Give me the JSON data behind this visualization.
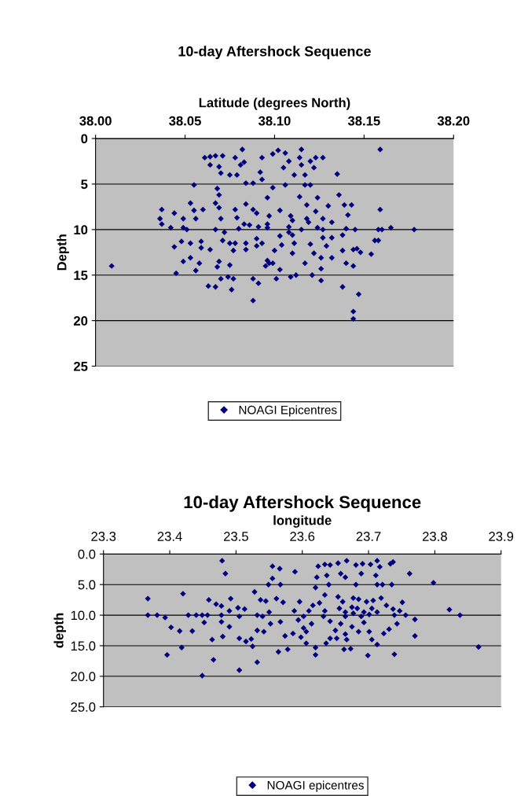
{
  "chart_data": [
    {
      "type": "scatter",
      "title": "10-day Aftershock Sequence",
      "xlabel": "Latitude (degrees North)",
      "ylabel": "Depth",
      "xlim": [
        38.0,
        38.2
      ],
      "xticks": [
        {
          "value": 38.0,
          "label": "38.00"
        },
        {
          "value": 38.05,
          "label": "38.05"
        },
        {
          "value": 38.1,
          "label": "38.10"
        },
        {
          "value": 38.15,
          "label": "38.15"
        },
        {
          "value": 38.2,
          "label": "38.20"
        }
      ],
      "ylim": [
        25,
        0
      ],
      "yticks": [
        0,
        5,
        10,
        15,
        20,
        25
      ],
      "grid": "y",
      "legend": "bottom",
      "marker": "diamond",
      "series": [
        {
          "name": "NOAGI Epicentres",
          "color": "#000080",
          "x": [
            38.009,
            38.159,
            38.178,
            38.165,
            38.158,
            38.16,
            38.159,
            38.156,
            38.158,
            38.154,
            38.144,
            38.144,
            38.147,
            38.138,
            38.144,
            38.14,
            38.148,
            38.146,
            38.135,
            38.136,
            38.141,
            38.139,
            38.143,
            38.145,
            38.14,
            38.138,
            38.138,
            38.144,
            38.132,
            38.132,
            38.115,
            38.114,
            38.115,
            38.123,
            38.127,
            38.12,
            38.122,
            38.102,
            38.099,
            38.106,
            38.108,
            38.105,
            38.111,
            38.117,
            38.117,
            38.12,
            38.099,
            38.106,
            38.096,
            38.114,
            38.124,
            38.118,
            38.123,
            38.103,
            38.109,
            38.11,
            38.108,
            38.115,
            38.108,
            38.118,
            38.119,
            38.103,
            38.11,
            38.111,
            38.104,
            38.11,
            38.12,
            38.124,
            38.127,
            38.127,
            38.129,
            38.132,
            38.13,
            38.127,
            38.122,
            38.126,
            38.126,
            38.117,
            38.121,
            38.126,
            38.103,
            38.109,
            38.112,
            38.101,
            38.099,
            38.1,
            38.096,
            38.097,
            38.095,
            38.088,
            38.091,
            38.088,
            38.076,
            38.074,
            38.077,
            38.07,
            38.063,
            38.067,
            38.045,
            38.056,
            38.068,
            38.075,
            38.069,
            38.049,
            38.053,
            38.058,
            38.044,
            38.048,
            38.053,
            38.059,
            38.064,
            38.059,
            38.042,
            38.037,
            38.036,
            38.037,
            38.044,
            38.049,
            38.049,
            38.051,
            38.053,
            38.055,
            38.056,
            38.06,
            38.055,
            38.068,
            38.069,
            38.067,
            38.069,
            38.07,
            38.067,
            38.072,
            38.071,
            38.075,
            38.078,
            38.079,
            38.083,
            38.08,
            38.084,
            38.088,
            38.09,
            38.086,
            38.091,
            38.096,
            38.097,
            38.096,
            38.084,
            38.084,
            38.078,
            38.077,
            38.09,
            38.09,
            38.093,
            38.064,
            38.067,
            38.071,
            38.061,
            38.064,
            38.069,
            38.07,
            38.075,
            38.082,
            38.078,
            38.083,
            38.081,
            38.093,
            38.092,
            38.093,
            38.084,
            38.088,
            38.079
          ],
          "values": [
            14.0,
            1.2,
            10.0,
            9.8,
            10.0,
            10.0,
            7.8,
            11.2,
            11.2,
            12.7,
            19.0,
            19.8,
            17.1,
            16.3,
            14.0,
            13.7,
            12.5,
            12.1,
            3.9,
            6.2,
            8.4,
            7.3,
            7.3,
            10.0,
            9.9,
            10.6,
            12.3,
            12.2,
            13.1,
            10.9,
            1.2,
            2.1,
            2.9,
            2.1,
            2.1,
            2.5,
            3.2,
            1.3,
            1.7,
            1.6,
            2.5,
            3.2,
            4.0,
            4.0,
            5.1,
            5.1,
            5.4,
            5.1,
            6.5,
            6.4,
            6.5,
            7.3,
            8.0,
            7.9,
            8.5,
            9.0,
            9.7,
            10.0,
            10.3,
            8.8,
            9.2,
            10.7,
            10.6,
            11.5,
            11.7,
            12.6,
            11.6,
            9.8,
            10.0,
            10.9,
            11.8,
            9.2,
            7.4,
            8.8,
            12.6,
            13.1,
            14.3,
            13.7,
            15.0,
            15.6,
            14.4,
            15.2,
            15.0,
            15.4,
            13.7,
            12.3,
            13.4,
            13.7,
            14.0,
            17.8,
            15.9,
            15.4,
            16.6,
            15.2,
            15.4,
            15.4,
            16.2,
            16.3,
            14.8,
            14.5,
            14.1,
            13.9,
            13.5,
            13.5,
            13.1,
            13.7,
            11.9,
            11.3,
            11.5,
            12.0,
            12.2,
            11.3,
            9.8,
            7.8,
            8.8,
            9.4,
            8.2,
            8.8,
            9.8,
            10.0,
            7.1,
            7.9,
            8.8,
            7.8,
            5.1,
            5.5,
            6.2,
            7.1,
            7.6,
            8.8,
            10.0,
            10.3,
            11.2,
            11.5,
            7.8,
            8.7,
            9.4,
            9.9,
            7.2,
            7.8,
            8.2,
            9.5,
            9.7,
            9.4,
            8.5,
            9.8,
            11.5,
            12.2,
            11.5,
            12.3,
            11.0,
            11.8,
            11.5,
            2.0,
            1.9,
            1.9,
            2.1,
            2.9,
            3.1,
            3.8,
            4.0,
            1.2,
            2.1,
            2.6,
            2.9,
            2.1,
            3.7,
            4.5,
            4.9,
            4.9,
            4.0
          ]
        }
      ]
    },
    {
      "type": "scatter",
      "title": "10-day Aftershock Sequence",
      "xlabel": "longitude",
      "ylabel": "depth",
      "xlim": [
        23.3,
        23.9
      ],
      "xticks": [
        23.3,
        23.4,
        23.5,
        23.6,
        23.7,
        23.8,
        23.9
      ],
      "ylim": [
        25,
        0
      ],
      "yticks": [
        {
          "value": 0,
          "label": "0.0"
        },
        {
          "value": 5,
          "label": "5.0"
        },
        {
          "value": 10,
          "label": "10.0"
        },
        {
          "value": 15,
          "label": "15.0"
        },
        {
          "value": 20,
          "label": "20.0"
        },
        {
          "value": 25,
          "label": "25.0"
        }
      ],
      "grid": "y",
      "legend": "bottom",
      "marker": "diamond",
      "series": [
        {
          "name": "NOAGI epicentres",
          "color": "#000080",
          "x": [
            23.367,
            23.367,
            23.381,
            23.393,
            23.402,
            23.415,
            23.396,
            23.42,
            23.418,
            23.428,
            23.44,
            23.449,
            23.434,
            23.452,
            23.457,
            23.459,
            23.449,
            23.466,
            23.464,
            23.47,
            23.478,
            23.478,
            23.478,
            23.479,
            23.484,
            23.48,
            23.49,
            23.492,
            23.49,
            23.503,
            23.505,
            23.513,
            23.505,
            23.515,
            23.523,
            23.505,
            23.532,
            23.525,
            23.528,
            23.537,
            23.545,
            23.532,
            23.54,
            23.55,
            23.532,
            23.542,
            23.552,
            23.549,
            23.555,
            23.555,
            23.566,
            23.567,
            23.561,
            23.571,
            23.567,
            23.574,
            23.564,
            23.578,
            23.589,
            23.588,
            23.596,
            23.586,
            23.602,
            23.61,
            23.616,
            23.606,
            23.62,
            23.614,
            23.62,
            23.622,
            23.624,
            23.634,
            23.642,
            23.654,
            23.667,
            23.665,
            23.658,
            23.64,
            23.637,
            23.681,
            23.691,
            23.703,
            23.713,
            23.717,
            23.733,
            23.737,
            23.711,
            23.713,
            23.721,
            23.681,
            23.689,
            23.735,
            23.762,
            23.798,
            23.634,
            23.626,
            23.634,
            23.632,
            23.654,
            23.661,
            23.656,
            23.665,
            23.677,
            23.685,
            23.675,
            23.683,
            23.697,
            23.707,
            23.705,
            23.693,
            23.719,
            23.665,
            23.677,
            23.689,
            23.701,
            23.713,
            23.727,
            23.737,
            23.747,
            23.751,
            23.739,
            23.756,
            23.77,
            23.743,
            23.731,
            23.723,
            23.713,
            23.705,
            23.77,
            23.739,
            23.699,
            23.822,
            23.838,
            23.866,
            23.642,
            23.65,
            23.658,
            23.665,
            23.675,
            23.685,
            23.693,
            23.701,
            23.636,
            23.663,
            23.673,
            23.667,
            23.642,
            23.652,
            23.62,
            23.598,
            23.606,
            23.594,
            23.602
          ],
          "values": [
            7.3,
            10.0,
            10.0,
            10.4,
            12.0,
            12.6,
            16.5,
            6.5,
            15.3,
            10.0,
            10.0,
            10.0,
            12.6,
            11.2,
            10.0,
            7.5,
            19.9,
            17.3,
            14.0,
            8.2,
            8.5,
            10.0,
            11.1,
            1.1,
            3.2,
            13.5,
            9.3,
            7.3,
            11.9,
            8.8,
            10.2,
            9.0,
            13.8,
            14.3,
            13.9,
            19.0,
            17.7,
            15.1,
            6.2,
            7.5,
            7.7,
            10.0,
            10.2,
            9.5,
            12.5,
            12.7,
            11.4,
            5.0,
            4.0,
            2.0,
            2.4,
            5.0,
            7.3,
            7.9,
            11.1,
            13.4,
            16.0,
            15.6,
            2.9,
            9.3,
            7.8,
            13.0,
            12.1,
            9.3,
            8.4,
            14.6,
            16.5,
            11.4,
            5.5,
            3.8,
            2.0,
            1.7,
            1.8,
            1.5,
            1.1,
            3.8,
            3.2,
            5.0,
            3.5,
            1.8,
            1.6,
            1.7,
            1.1,
            2.1,
            1.6,
            1.3,
            3.5,
            5.0,
            5.0,
            5.0,
            3.2,
            5.0,
            3.2,
            4.7,
            6.7,
            8.0,
            9.3,
            10.2,
            7.0,
            7.8,
            8.9,
            9.5,
            7.2,
            7.4,
            8.7,
            8.9,
            7.8,
            7.6,
            8.9,
            9.5,
            7.2,
            10.2,
            9.7,
            10.2,
            9.9,
            9.5,
            8.4,
            9.0,
            9.3,
            7.9,
            10.0,
            10.0,
            10.7,
            11.4,
            12.3,
            13.0,
            14.8,
            14.0,
            13.4,
            16.4,
            16.6,
            9.1,
            10.0,
            15.2,
            11.0,
            12.5,
            11.4,
            13.1,
            11.9,
            12.7,
            11.2,
            12.7,
            14.6,
            15.6,
            15.5,
            14.0,
            13.8,
            13.8,
            15.3,
            13.6,
            12.7,
            10.8,
            10.2
          ]
        }
      ]
    }
  ]
}
